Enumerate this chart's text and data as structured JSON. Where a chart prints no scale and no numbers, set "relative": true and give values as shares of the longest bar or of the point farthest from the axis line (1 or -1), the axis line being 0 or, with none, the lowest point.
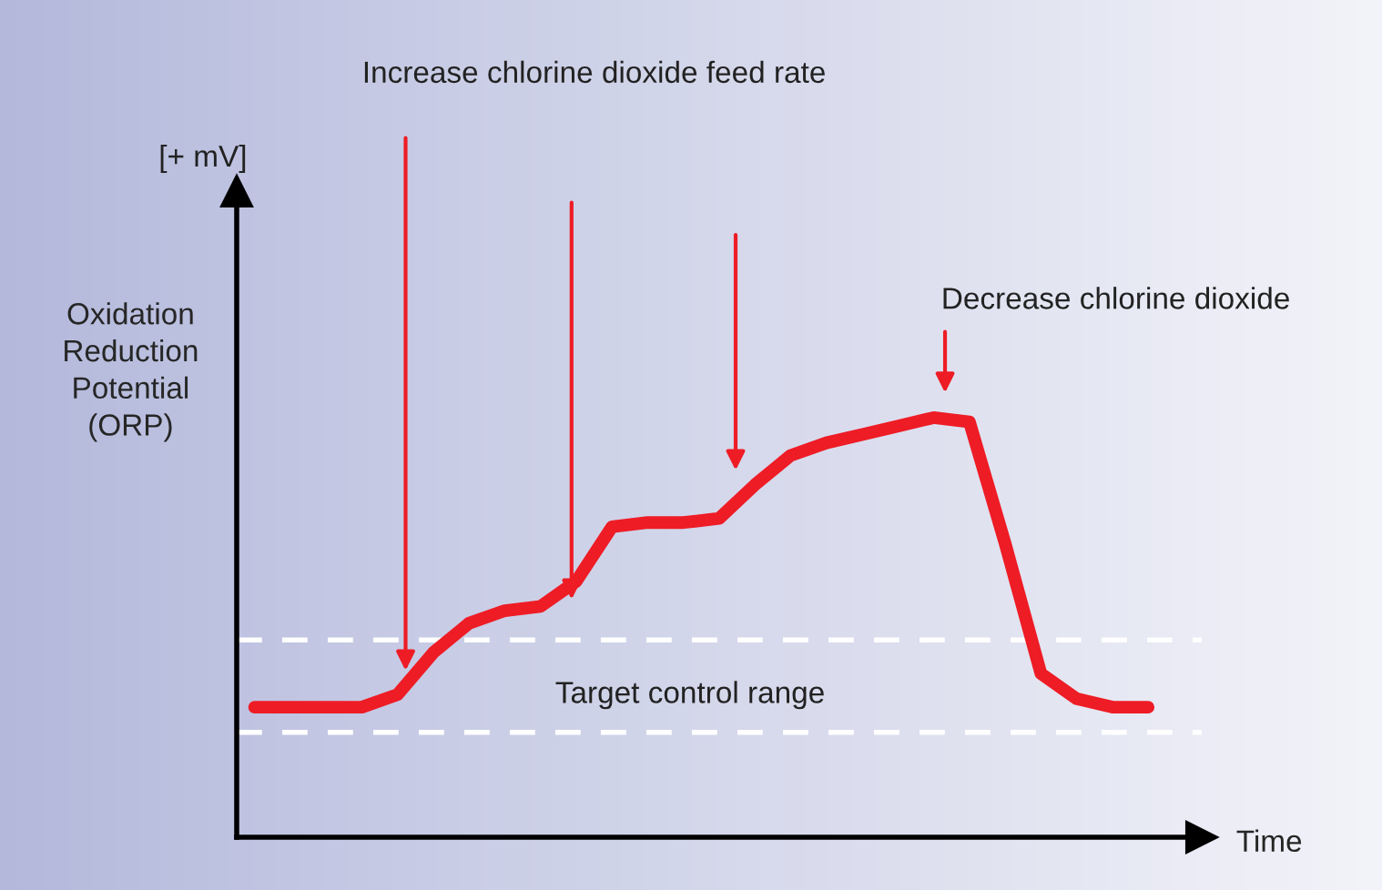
{
  "chart_data": {
    "type": "line",
    "relative": true,
    "xlabel": "Time",
    "ylabel": "Oxidation\nReduction\nPotential\n(ORP)",
    "categories": [
      null,
      null,
      null,
      null,
      null,
      null,
      null,
      null,
      null,
      null,
      null,
      null,
      null,
      null,
      null,
      null,
      null,
      null,
      null,
      null,
      null,
      null,
      null,
      null,
      null,
      null
    ],
    "series": [
      {
        "color": "#ee1c25",
        "values": [
          0.31,
          0.31,
          0.31,
          0.31,
          0.34,
          0.44,
          0.51,
          0.54,
          0.55,
          0.61,
          0.74,
          0.75,
          0.75,
          0.76,
          0.84,
          0.91,
          0.94,
          0.96,
          0.98,
          1.0,
          0.99,
          0.7,
          0.39,
          0.33,
          0.31,
          0.31
        ]
      }
    ],
    "ref_lines": [
      {
        "axis": "y",
        "value": 0.47,
        "color": "#ffffff",
        "line_style": "dashed"
      },
      {
        "axis": "y",
        "value": 0.25,
        "color": "#ffffff",
        "line_style": "dashed"
      }
    ],
    "annotations": [
      "Increase chlorine dioxide feed rate",
      "[+ mV]",
      "Decrease chlorine dioxide",
      "Target control range"
    ],
    "grid": false,
    "legend": false,
    "line_style": "solid",
    "marker": "none"
  }
}
